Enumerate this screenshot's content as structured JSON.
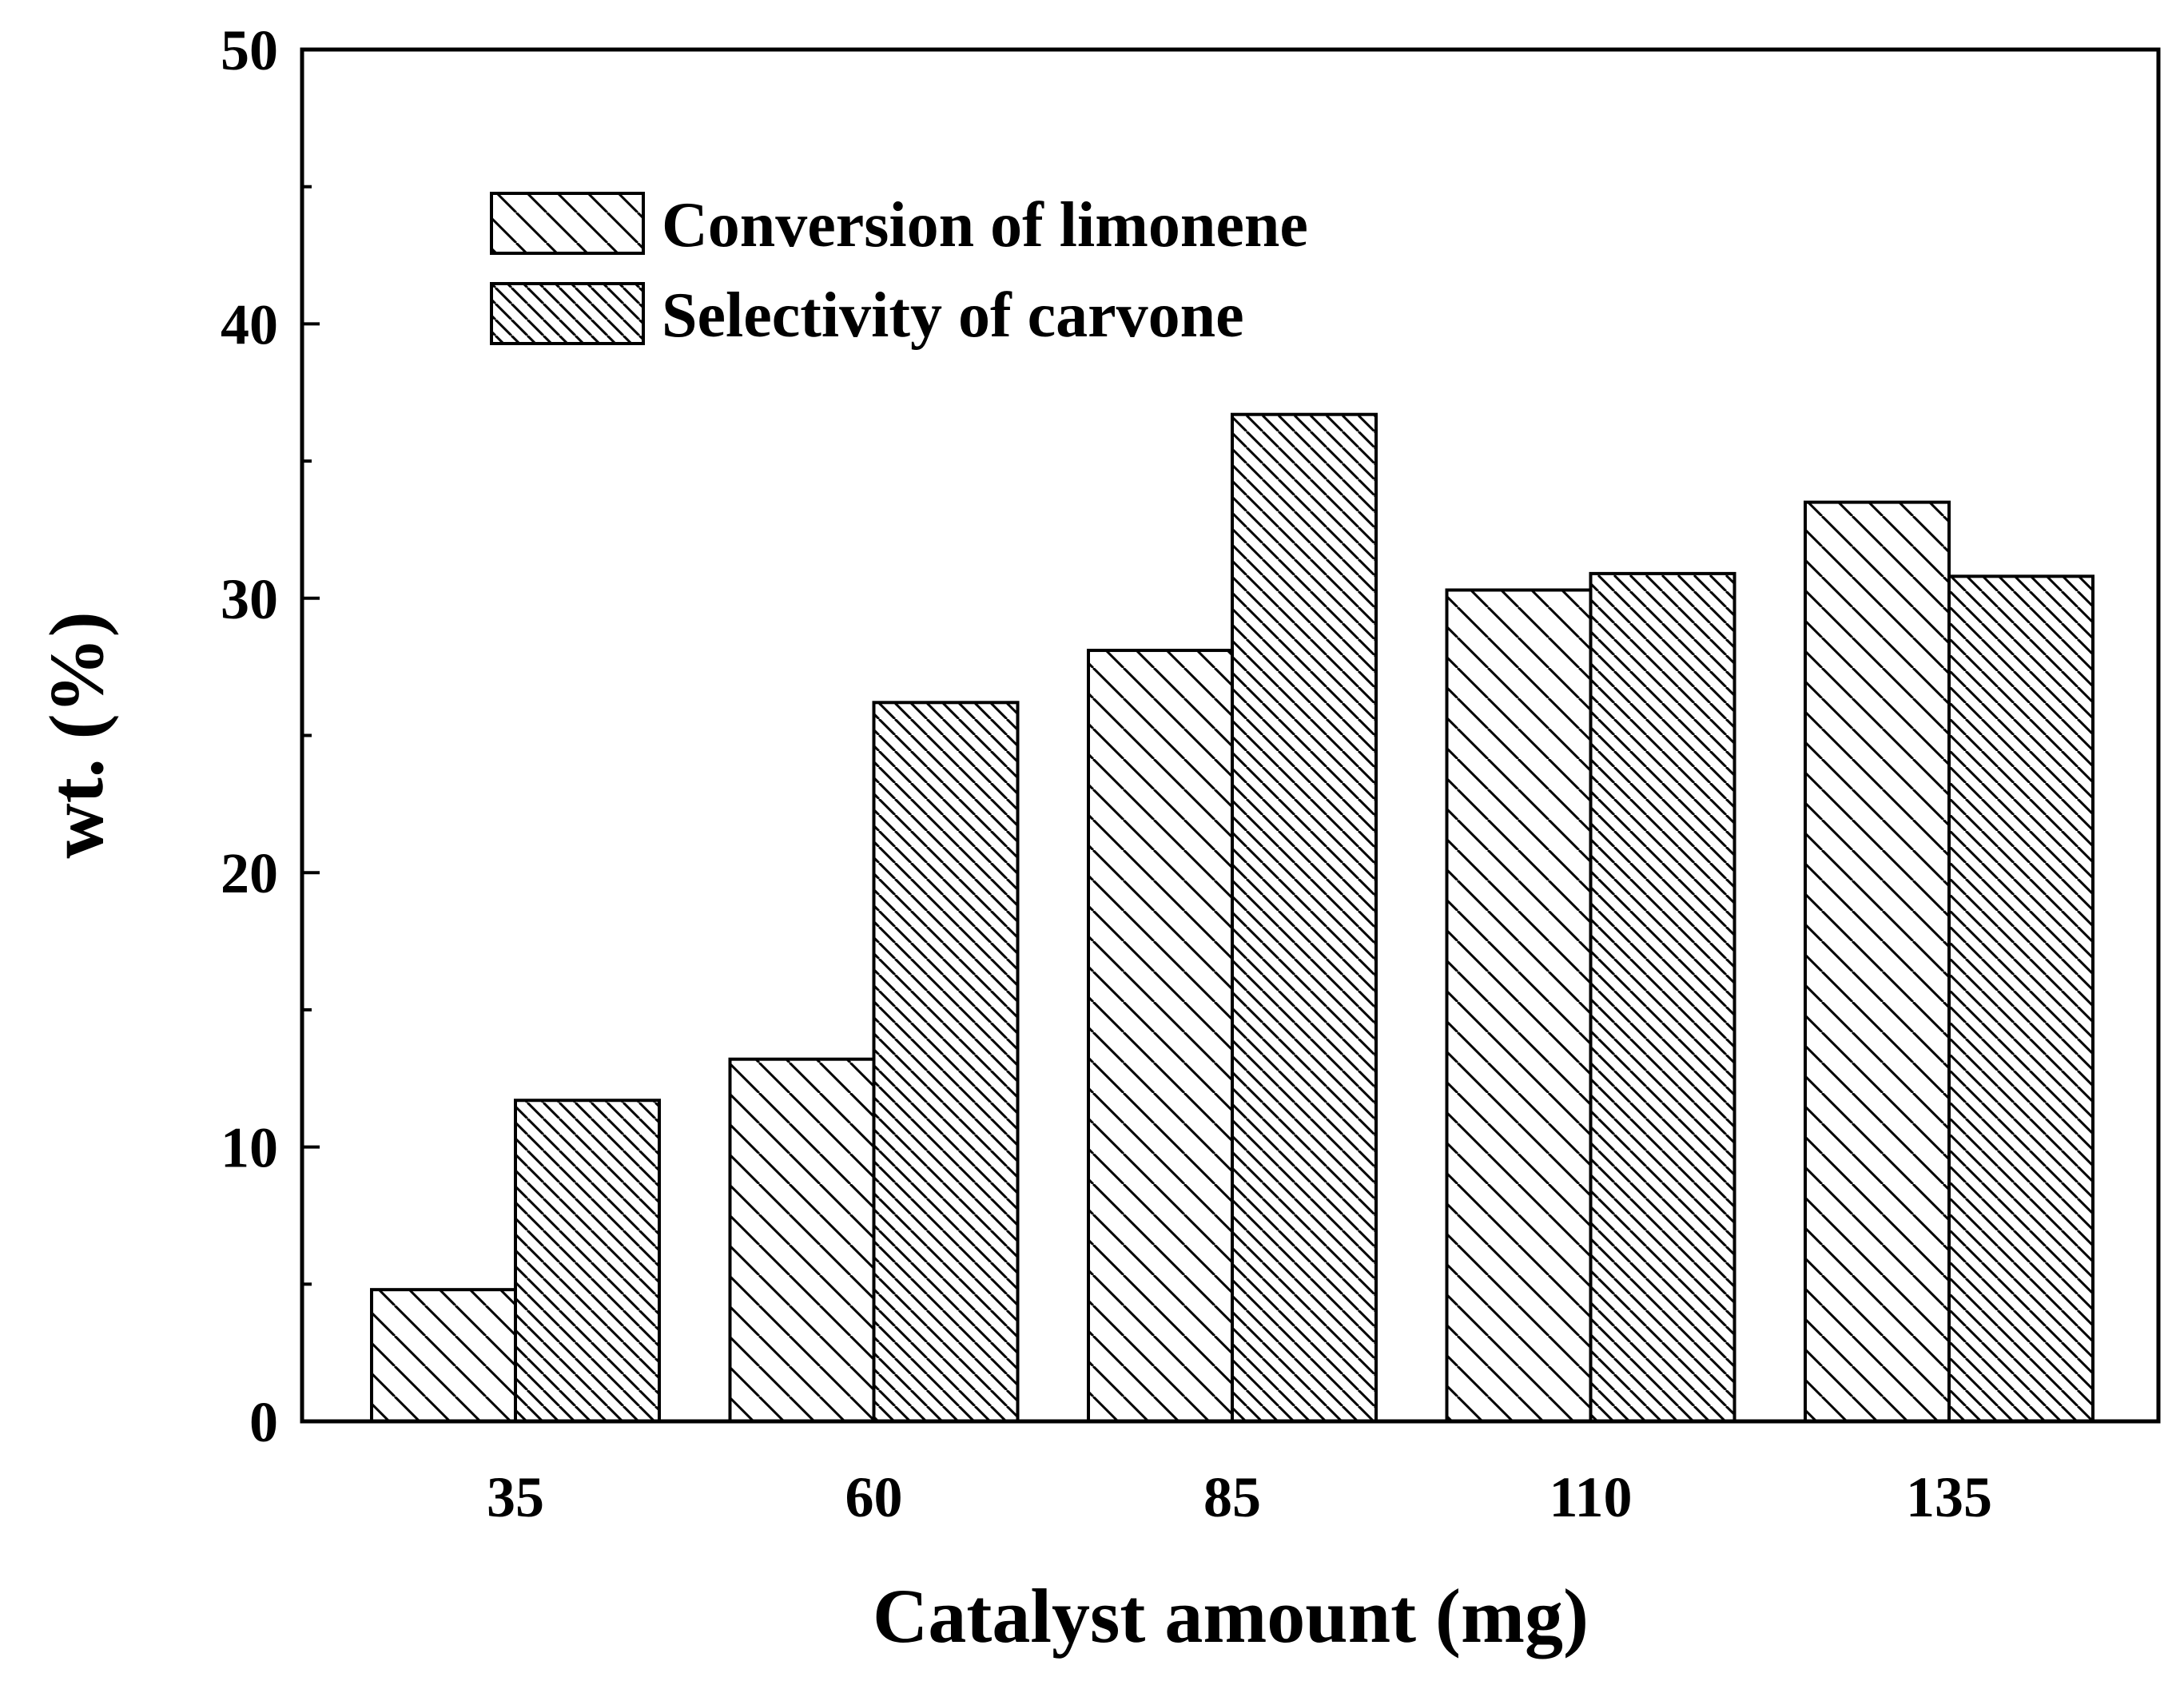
{
  "chart_data": {
    "type": "bar",
    "title": "",
    "xlabel": "Catalyst amount (mg)",
    "ylabel": "wt. (%)",
    "categories": [
      "35",
      "60",
      "85",
      "110",
      "135"
    ],
    "ylim": [
      0,
      50
    ],
    "yticks": [
      0,
      10,
      20,
      30,
      40,
      50
    ],
    "grid": false,
    "legend_position": "top-left",
    "series": [
      {
        "name": "Conversion of limonene",
        "hatch": "sparse-diagonal",
        "values": [
          4.8,
          13.2,
          28.1,
          30.3,
          33.5
        ]
      },
      {
        "name": "Selectivity of carvone",
        "hatch": "dense-diagonal",
        "values": [
          11.7,
          26.2,
          36.7,
          30.9,
          30.8
        ]
      }
    ]
  }
}
